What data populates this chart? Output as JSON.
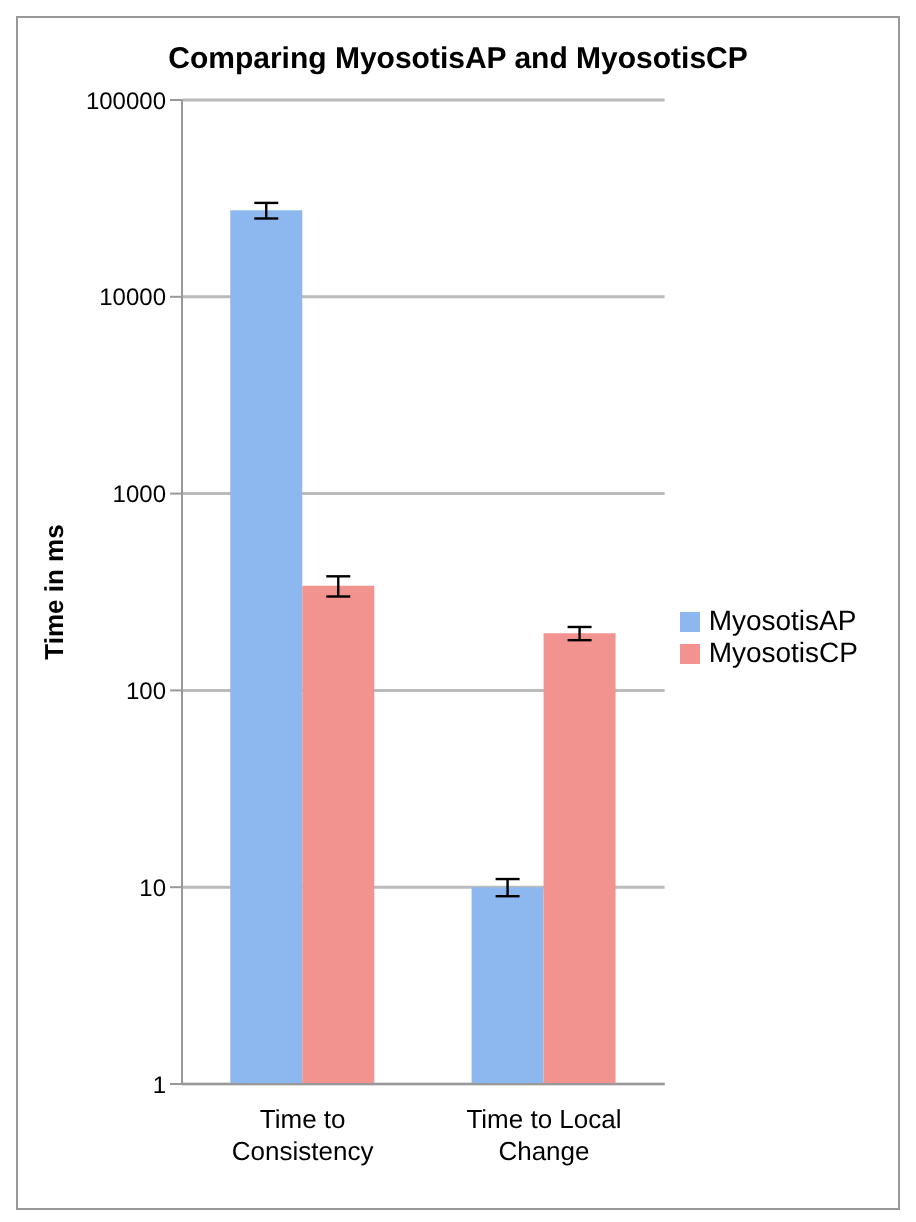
{
  "chart_data": {
    "type": "bar",
    "title": "Comparing MyosotisAP and MyosotisCP",
    "ylabel": "Time in ms",
    "categories": [
      "Time to Consistency",
      "Time to Local Change"
    ],
    "series": [
      {
        "name": "MyosotisAP",
        "color": "#8db8ef",
        "values": [
          27500,
          10
        ],
        "errors": [
          2500,
          1
        ]
      },
      {
        "name": "MyosotisCP",
        "color": "#f29390",
        "values": [
          340,
          195
        ],
        "errors": [
          40,
          15
        ]
      }
    ],
    "log": true,
    "ylim": [
      1,
      100000
    ],
    "yticks": [
      1,
      10,
      100,
      1000,
      10000,
      100000
    ],
    "grid": "y",
    "legend": "right"
  }
}
